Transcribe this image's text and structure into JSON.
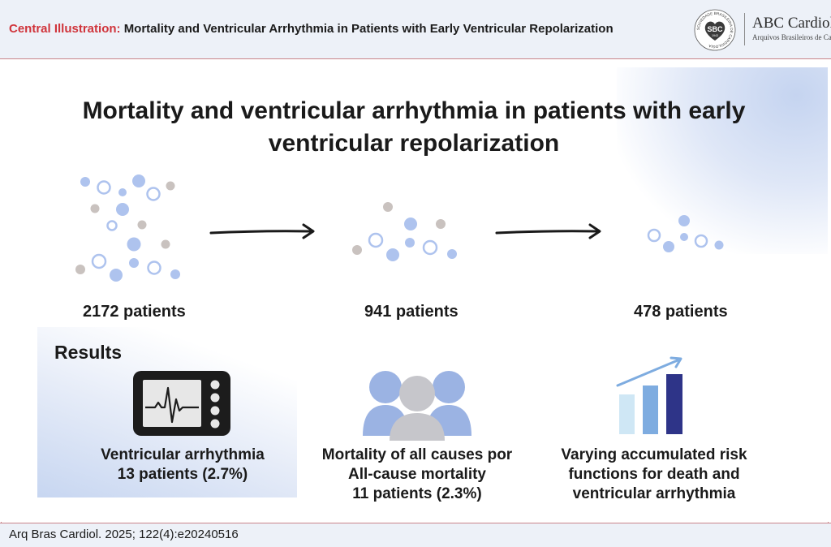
{
  "header": {
    "label": "Central Illustration:",
    "title": "Mortality and Ventricular Arrhythmia in Patients with  Early Ventricular Repolarization"
  },
  "logo": {
    "seal_text": "SOCIEDADE BRASILEIRA DE CARDIOLOGIA",
    "seal_abbr": "SBC",
    "seal_year": "1943",
    "name": "ABC Cardiol",
    "subtitle": "Arquivos Brasileiros de Cardiologia"
  },
  "main_title_line1": "Mortality and ventricular arrhythmia in patients with early",
  "main_title_line2": "ventricular repolarization",
  "flow": [
    {
      "count": "2172 patients"
    },
    {
      "count": "941 patients"
    },
    {
      "count": "478 patients"
    }
  ],
  "results": {
    "heading": "Results",
    "items": [
      {
        "icon": "ecg-monitor-icon",
        "line1": "Ventricular arrhythmia",
        "line2": "13 patients (2.7%)",
        "line3": ""
      },
      {
        "icon": "people-group-icon",
        "line1": "Mortality of all causes por",
        "line2": "All-cause mortality",
        "line3": "11 patients (2.3%)"
      },
      {
        "icon": "rising-bar-chart-icon",
        "line1": "Varying accumulated risk",
        "line2": "functions for death and",
        "line3": "ventricular arrhythmia"
      }
    ]
  },
  "footer": {
    "citation": "Arq Bras Cardiol. 2025; 122(4):e20240516"
  },
  "colors": {
    "accent_red": "#d0343b",
    "dot_blue": "#aec3ee",
    "dot_gray": "#c9c2bf",
    "monitor": "#1c1c1c",
    "people": "#9bb3e3",
    "bar_light": "#cfe7f5",
    "bar_mid": "#7eace0",
    "bar_dark": "#2e3488"
  }
}
